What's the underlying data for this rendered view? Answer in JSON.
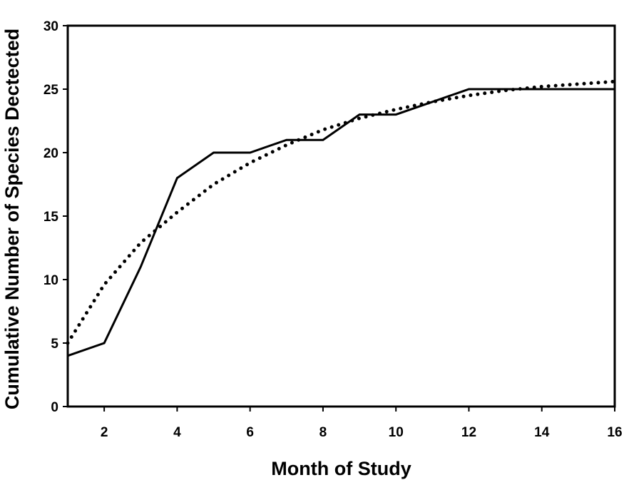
{
  "chart_data": {
    "type": "line",
    "title": "",
    "xlabel": "Month of Study",
    "ylabel": "Cumulative Number of Species Dectected",
    "xlim": [
      1,
      16
    ],
    "ylim": [
      0,
      30
    ],
    "xticks": [
      2,
      4,
      6,
      8,
      10,
      12,
      14,
      16
    ],
    "yticks": [
      0,
      5,
      10,
      15,
      20,
      25,
      30
    ],
    "grid": false,
    "legend": "none",
    "series": [
      {
        "style": "solid",
        "color": "#000000",
        "x": [
          1,
          2,
          3,
          4,
          5,
          6,
          7,
          8,
          9,
          10,
          11,
          12,
          13,
          14,
          15,
          16
        ],
        "y": [
          4,
          5,
          11,
          18,
          20,
          20,
          21,
          21,
          23,
          23,
          24,
          25,
          25,
          25,
          25,
          25
        ]
      },
      {
        "style": "dotted",
        "color": "#000000",
        "x": [
          1,
          2,
          3,
          4,
          5,
          6,
          7,
          8,
          9,
          10,
          11,
          12,
          13,
          14,
          15,
          16
        ],
        "y": [
          5,
          9.6,
          12.9,
          15.3,
          17.5,
          19.2,
          20.6,
          21.8,
          22.7,
          23.4,
          24,
          24.5,
          24.9,
          25.2,
          25.4,
          25.6
        ]
      }
    ]
  }
}
